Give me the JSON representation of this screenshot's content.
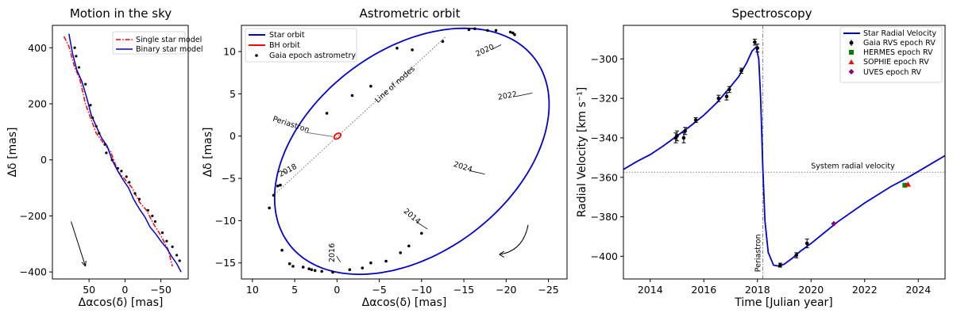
{
  "chart_data": [
    {
      "type": "line",
      "title": "Motion in the sky",
      "xlabel": "Δαcos(δ) [mas]",
      "ylabel": "Δδ [mas]",
      "xlim": [
        101,
        -88
      ],
      "ylim": [
        -425,
        480
      ],
      "xticks": [
        50,
        0,
        -50
      ],
      "xtick_labels": [
        "50",
        "0",
        "−50"
      ],
      "yticks": [
        -400,
        -200,
        0,
        200,
        400
      ],
      "ytick_labels": [
        "−400",
        "−200",
        "0",
        "200",
        "400"
      ],
      "legend": {
        "position": "top-right",
        "entries": [
          "Single star model",
          "Binary star model"
        ]
      },
      "series": [
        {
          "name": "Single star model",
          "color": "#ff0000",
          "style": "dashdot",
          "x": [
            85,
            78,
            70,
            63,
            55,
            48,
            40,
            30,
            20,
            10,
            0,
            -10,
            -20,
            -30,
            -40,
            -50,
            -60,
            -66
          ],
          "y": [
            440,
            405,
            330,
            290,
            200,
            150,
            95,
            60,
            30,
            -40,
            -70,
            -100,
            -150,
            -180,
            -230,
            -270,
            -320,
            -380
          ]
        },
        {
          "name": "Binary star model",
          "color": "#0000cd",
          "style": "solid",
          "x": [
            78,
            73,
            67,
            60,
            53,
            47,
            40,
            33,
            25,
            18,
            10,
            3,
            -5,
            -12,
            -20,
            -28,
            -35,
            -43,
            -50,
            -58,
            -65,
            -72,
            -78
          ],
          "y": [
            450,
            380,
            320,
            280,
            220,
            160,
            120,
            80,
            50,
            0,
            -40,
            -70,
            -100,
            -140,
            -175,
            -205,
            -240,
            -265,
            -290,
            -315,
            -345,
            -370,
            -400
          ]
        },
        {
          "name": "Gaia epoch astrometry",
          "color": "#000000",
          "style": "points",
          "x": [
            70,
            68,
            64,
            55,
            48,
            45,
            40,
            36,
            28,
            26,
            18,
            10,
            5,
            -2,
            -6,
            -14,
            -20,
            -32,
            -38,
            -42,
            -52,
            -58,
            -66,
            -72,
            -76
          ],
          "y": [
            400,
            370,
            330,
            270,
            195,
            150,
            120,
            95,
            55,
            25,
            0,
            -30,
            -40,
            -60,
            -80,
            -120,
            -140,
            -180,
            -200,
            -220,
            -260,
            -290,
            -310,
            -340,
            -360
          ]
        }
      ],
      "annotations": [
        {
          "type": "arrow",
          "from": [
            75,
            -220
          ],
          "to": [
            55,
            -380
          ]
        }
      ]
    },
    {
      "type": "line",
      "title": "Astrometric orbit",
      "xlabel": "Δαcos(δ) [mas]",
      "ylabel": "Δδ [mas]",
      "xlim": [
        11.3,
        -27.2
      ],
      "ylim": [
        -16.9,
        13.1
      ],
      "xticks": [
        10,
        5,
        0,
        -5,
        -10,
        -15,
        -20,
        -25
      ],
      "xtick_labels": [
        "10",
        "5",
        "0",
        "−5",
        "−10",
        "−15",
        "−20",
        "−25"
      ],
      "yticks": [
        10,
        5,
        0,
        -5,
        -10,
        -15
      ],
      "ytick_labels": [
        "10",
        "5",
        "0",
        "−5",
        "−10",
        "−15"
      ],
      "legend": {
        "position": "top-left",
        "entries": [
          "Star orbit",
          "BH orbit",
          "Gaia epoch astrometry"
        ]
      },
      "star_orbit": {
        "center": [
          -8.85,
          -1.8
        ],
        "semi_axes": [
          18.2,
          12.0
        ],
        "rotation_deg": 37
      },
      "bh_orbit": {
        "center": [
          -0.05,
          0.0
        ],
        "semi_axes": [
          0.45,
          0.28
        ],
        "rotation_deg": 37
      },
      "line_of_nodes": {
        "from": [
          7.6,
          -7.1
        ],
        "to": [
          -12.9,
          11.8
        ],
        "label": "Line of nodes"
      },
      "periastron_label": "Periastron",
      "year_labels": [
        "2016",
        "2018",
        "2020",
        "2022",
        "2024",
        "2014"
      ],
      "epoch_points": {
        "x": [
          8.0,
          7.5,
          7.0,
          6.7,
          5.6,
          4.0,
          3.0,
          1.8,
          0.5,
          -1.5,
          -3.0,
          -4.0,
          -5.8,
          -7.5,
          -8.5,
          -10.0,
          -12.5,
          -15.6,
          -16.3,
          -17.8,
          -18.8,
          -20.5,
          -21.0,
          -20.8,
          -8.9,
          -7.1,
          -4.0,
          -1.8,
          1.2,
          2.6,
          3.3,
          5.2,
          6.5
        ],
        "y": [
          -8.5,
          -7.0,
          -5.9,
          -5.8,
          -15.1,
          -15.5,
          -15.8,
          -16.0,
          -16.1,
          -15.8,
          -15.6,
          -15.0,
          -14.8,
          -13.8,
          -13.0,
          -11.5,
          11.2,
          12.6,
          12.7,
          12.5,
          12.5,
          12.3,
          12.0,
          12.2,
          10.2,
          10.4,
          5.9,
          4.8,
          2.7,
          -15.9,
          -15.7,
          -15.4,
          -13.5
        ]
      }
    },
    {
      "type": "line",
      "title": "Spectroscopy",
      "xlabel": "Time [Julian year]",
      "ylabel": "Radial Velocity [km s⁻¹]",
      "xlim": [
        2013.0,
        2025.0
      ],
      "ylim": [
        -411.5,
        -283.0
      ],
      "xticks": [
        2014,
        2016,
        2018,
        2020,
        2022,
        2024
      ],
      "xtick_labels": [
        "2014",
        "2016",
        "2018",
        "2020",
        "2022",
        "2024"
      ],
      "yticks": [
        -300,
        -320,
        -340,
        -360,
        -380,
        -400
      ],
      "ytick_labels": [
        "−300",
        "−320",
        "−340",
        "−360",
        "−380",
        "−400"
      ],
      "legend": {
        "position": "top-right",
        "entries": [
          "Star Radial Velocity",
          "Gaia RVS epoch RV",
          "HERMES epoch RV",
          "SOPHIE epoch RV",
          "UVES epoch RV"
        ]
      },
      "system_rv": {
        "value": -357.4,
        "label": "System radial velocity"
      },
      "periastron": {
        "time": 2018.2,
        "label": "Periastron"
      },
      "model": {
        "x": [
          2013.0,
          2013.5,
          2014.0,
          2014.5,
          2015.0,
          2015.5,
          2016.0,
          2016.5,
          2017.0,
          2017.3,
          2017.6,
          2017.8,
          2017.95,
          2018.05,
          2018.12,
          2018.2,
          2018.28,
          2018.4,
          2018.6,
          2018.8,
          2019.0,
          2019.3,
          2019.6,
          2020.0,
          2020.5,
          2021.0,
          2022.0,
          2023.0,
          2023.5,
          2024.0,
          2024.5,
          2025.0
        ],
        "y": [
          -356.0,
          -352.0,
          -348.5,
          -344.0,
          -339.0,
          -334.0,
          -328.5,
          -322.0,
          -314.0,
          -309.0,
          -302.0,
          -296.0,
          -294.0,
          -300.0,
          -320.0,
          -355.0,
          -382.0,
          -398.0,
          -404.5,
          -405.0,
          -404.0,
          -401.0,
          -397.5,
          -393.5,
          -388.0,
          -382.5,
          -373.0,
          -364.5,
          -361.0,
          -357.0,
          -353.0,
          -349.0
        ]
      },
      "gaia_rvs": {
        "x": [
          2014.95,
          2015.0,
          2015.25,
          2015.3,
          2015.7,
          2016.55,
          2016.85,
          2016.95,
          2017.4,
          2017.9,
          2018.0,
          2018.85,
          2019.45,
          2019.85
        ],
        "y": [
          -340.0,
          -339.0,
          -340.0,
          -336.5,
          -331.0,
          -320.0,
          -319.0,
          -315.5,
          -306.0,
          -291.5,
          -294.5,
          -404.5,
          -399.5,
          -393.5
        ],
        "err": [
          2.5,
          2.5,
          2.5,
          1.8,
          1.2,
          1.6,
          1.8,
          1.5,
          1.3,
          1.5,
          2.0,
          1.0,
          1.3,
          2.2
        ]
      },
      "hermes": {
        "x": [
          2023.5
        ],
        "y": [
          -364.0
        ],
        "color": "#008000"
      },
      "sophie": {
        "x": [
          2023.62
        ],
        "y": [
          -363.5
        ],
        "color": "#ff0000"
      },
      "uves": {
        "x": [
          2020.85
        ],
        "y": [
          -383.5
        ],
        "color": "#800080"
      }
    }
  ]
}
